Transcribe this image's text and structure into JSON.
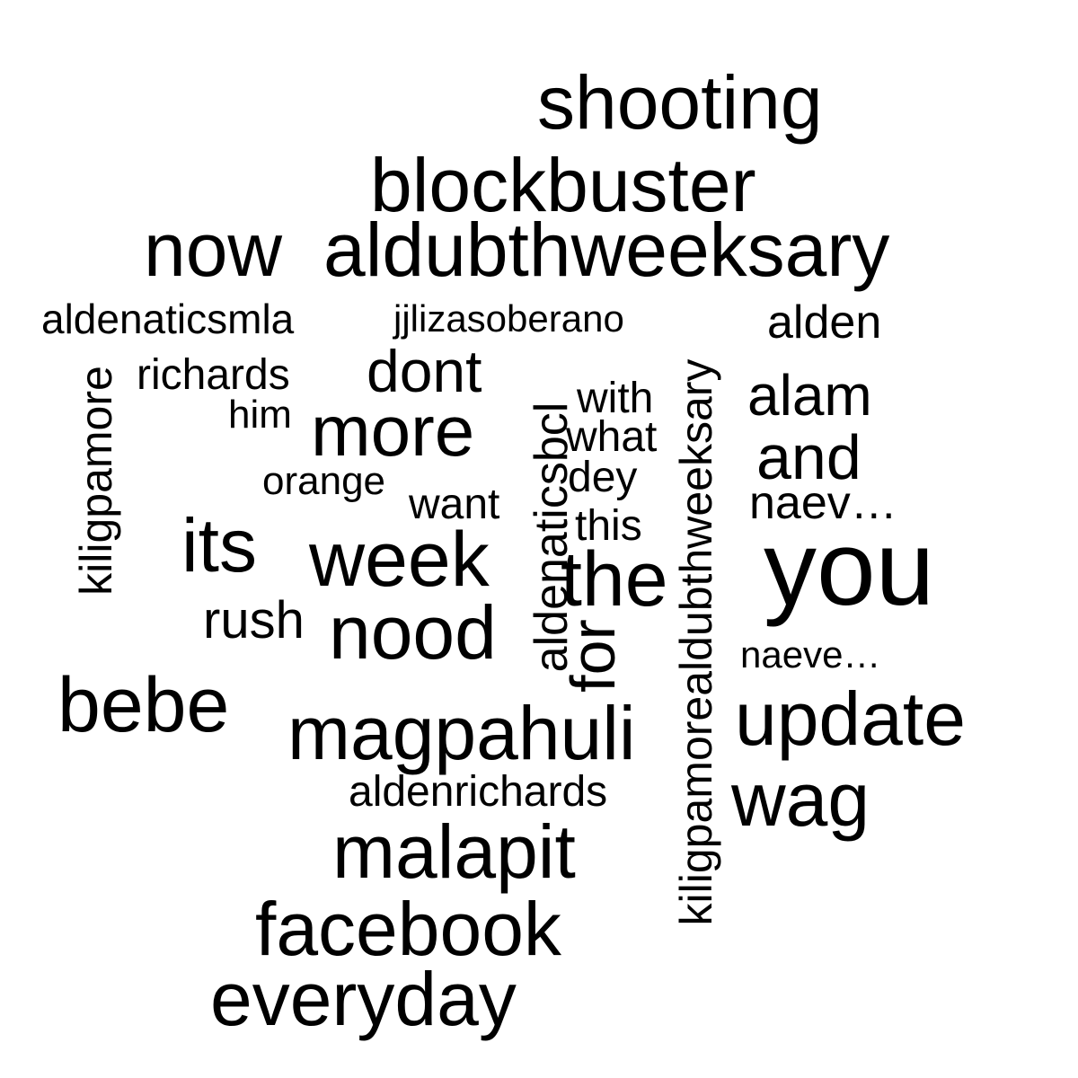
{
  "words": {
    "shooting": "shooting",
    "blockbuster": "blockbuster",
    "now": "now",
    "aldubthweeksary": "aldubthweeksary",
    "aldenaticsmla": "aldenaticsmla",
    "jjlizasoberano": "jjlizasoberano",
    "alden": "alden",
    "richards": "richards",
    "dont": "dont",
    "alam": "alam",
    "him": "him",
    "more": "more",
    "with": "with",
    "what": "what",
    "and": "and",
    "orange": "orange",
    "dey": "dey",
    "want": "want",
    "naev": "naev…",
    "its": "its",
    "this": "this",
    "week": "week",
    "the": "the",
    "you": "you",
    "rush": "rush",
    "nood": "nood",
    "naeve": "naeve…",
    "bebe": "bebe",
    "magpahuli": "magpahuli",
    "update": "update",
    "aldenrichards": "aldenrichards",
    "wag": "wag",
    "malapit": "malapit",
    "facebook": "facebook",
    "everyday": "everyday",
    "kiligpamore": "kiligpamore",
    "aldenaticsbcl": "aldenaticsbcl",
    "for": "for",
    "kiligpamorealdubthweeksary": "kiligpamorealdubthweeksary"
  }
}
